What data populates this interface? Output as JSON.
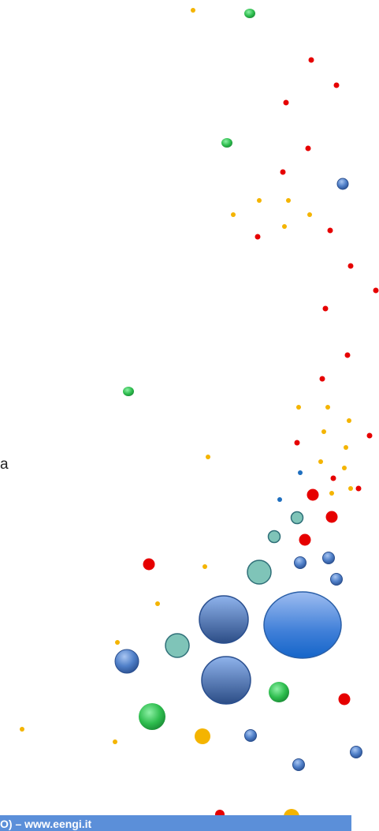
{
  "stray_text": "a",
  "footer": {
    "text": "O) – www.eengi.it"
  },
  "colors": {
    "red": "#e60000",
    "orange": "#f4b400",
    "green": "#2ebd4e",
    "blue": "#5b8fd9",
    "teal": "#7fc4b8",
    "dark_blue": "#1f6fbf",
    "footer_bar": "#5b8fd9"
  },
  "dot_kinds": [
    "small-orange",
    "small-red",
    "green-sphere",
    "blue-sphere",
    "teal-sphere",
    "big-red",
    "big-orange",
    "small-dark-blue"
  ]
}
